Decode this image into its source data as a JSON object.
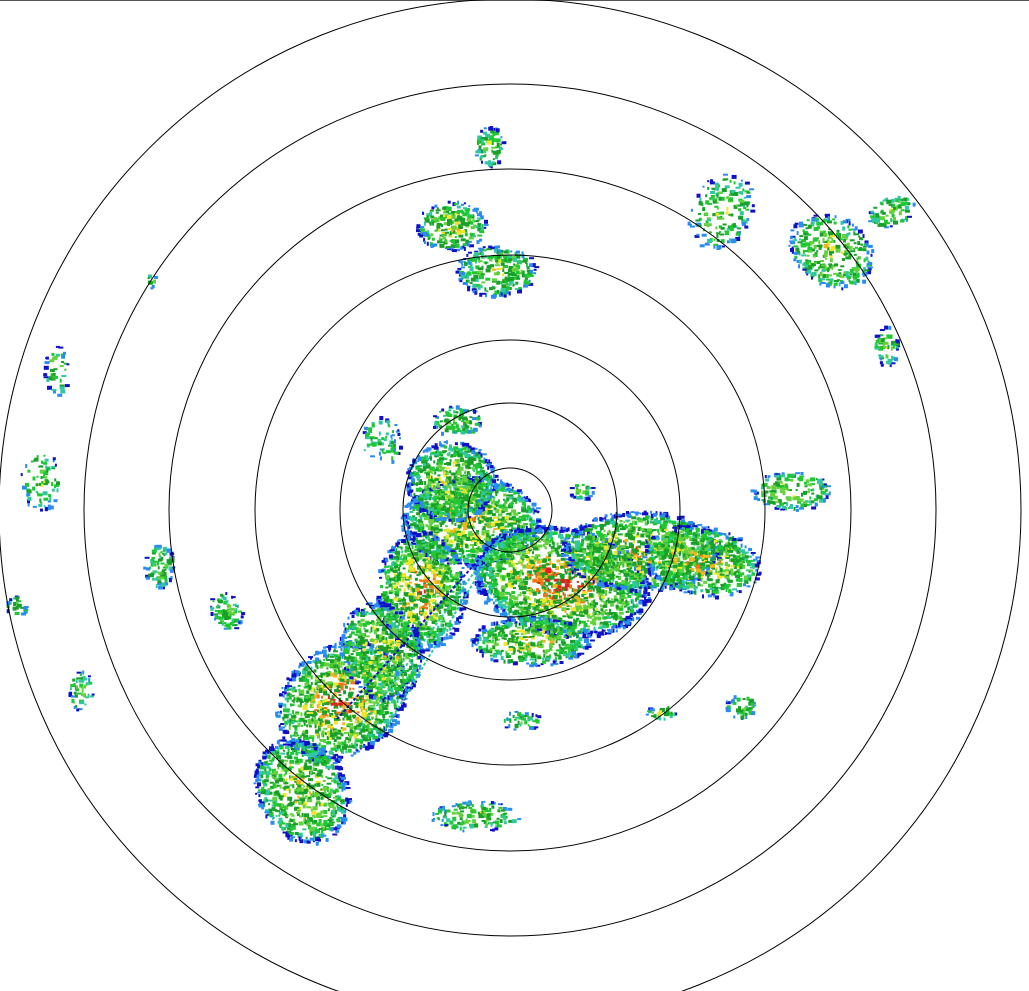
{
  "radar": {
    "range_ring_count": 7,
    "ring_color": "#000000",
    "background": "#ffffff",
    "reflectivity_colors": [
      "#1010c8",
      "#2a8cf0",
      "#30c8a0",
      "#1ec832",
      "#18a028",
      "#64d23c",
      "#f0e628",
      "#f0b41e",
      "#f07814",
      "#e61e1e"
    ]
  }
}
